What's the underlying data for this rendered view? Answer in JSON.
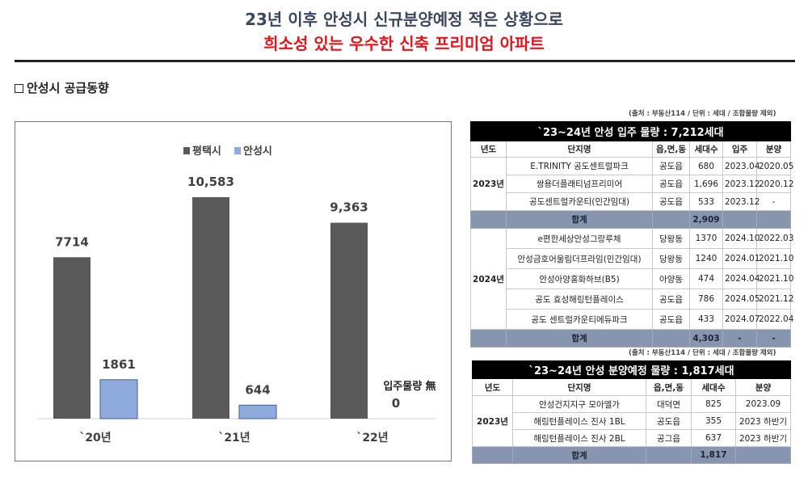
{
  "header": {
    "line1": "23년 이후 안성시 신규분양예정 적은 상황으로",
    "line2": "희소성 있는 우수한 신축 프리미엄 아파트"
  },
  "section_title": "안성시 공급동향",
  "chart_data": {
    "type": "bar",
    "categories": [
      "`20년",
      "`21년",
      "`22년"
    ],
    "series": [
      {
        "name": "평택시",
        "values": [
          7714,
          10583,
          9363
        ],
        "labels": [
          "7714",
          "10,583",
          "9,363"
        ],
        "color": "#595959"
      },
      {
        "name": "안성시",
        "values": [
          1861,
          644,
          0
        ],
        "labels": [
          "1861",
          "644",
          "0"
        ],
        "color": "#8faadc"
      }
    ],
    "legend_position": "top",
    "annotation": "입주물량 無",
    "ylim": [
      0,
      12000
    ],
    "grid": false
  },
  "table1": {
    "source": "(출처 : 부동산114 / 단위 : 세대 / 조합물량 제외)",
    "caption": "`23~24년 안성 입주 물량 : 7,212세대",
    "columns": [
      "년도",
      "단지명",
      "읍,면,동",
      "세대수",
      "입주",
      "분양"
    ],
    "groups": [
      {
        "year": "2023년",
        "rows": [
          [
            "E.TRINITY 공도센트럴파크",
            "공도읍",
            "680",
            "2023.04",
            "2020.05"
          ],
          [
            "쌍용더플래티넘프리미어",
            "공도읍",
            "1,696",
            "2023.12",
            "2020.12"
          ],
          [
            "공도센트럴카운티(민간임대)",
            "공도읍",
            "533",
            "2023.12",
            "-"
          ]
        ],
        "total_label": "합계",
        "total": "2,909",
        "total_extra": [
          "",
          ""
        ]
      },
      {
        "year": "2024년",
        "rows": [
          [
            "e편한세상안성그랑루체",
            "당왕동",
            "1370",
            "2024.10",
            "2022.03"
          ],
          [
            "안성금호어울림더프라임(민간임대)",
            "당왕동",
            "1240",
            "2024.01",
            "2021.10"
          ],
          [
            "안성아양홍화하브(B5)",
            "아양동",
            "474",
            "2024.04",
            "2021.10"
          ],
          [
            "공도 효성해링턴플레이스",
            "공도읍",
            "786",
            "2024.05",
            "2021.12"
          ],
          [
            "공도 센트럴카운티에듀파크",
            "공도읍",
            "433",
            "2024.07",
            "2022.04"
          ]
        ],
        "total_label": "합계",
        "total": "4,303",
        "total_extra": [
          "-",
          "-"
        ]
      }
    ]
  },
  "table2": {
    "source": "(출처 : 부동산114 / 단위 : 세대 / 조합물량 제외)",
    "caption": "`23~24년 안성 분양예정 물량 : 1,817세대",
    "columns": [
      "년도",
      "단지명",
      "읍,면,동",
      "세대수",
      "분양"
    ],
    "year": "2023년",
    "rows": [
      [
        "안성건지지구 모아엘가",
        "대덕면",
        "825",
        "2023.09"
      ],
      [
        "해링턴플레이스 진사 1BL",
        "공도읍",
        "355",
        "2023 하반기"
      ],
      [
        "해링턴플레이스 진사 2BL",
        "공그읍",
        "637",
        "2023 하반기"
      ]
    ],
    "total_label": "합계",
    "total": "1,817"
  }
}
